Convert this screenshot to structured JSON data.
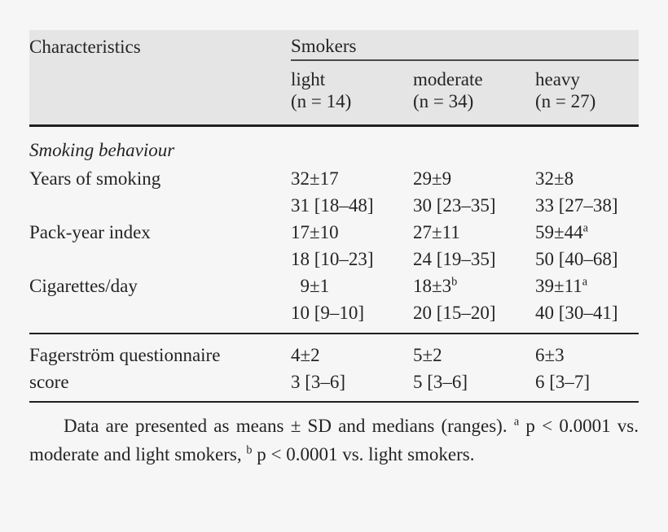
{
  "theme": {
    "page_bg": "#f6f6f6",
    "header_bg": "#e5e5e6",
    "text_color": "#242424",
    "rule_color": "#1f1f1f"
  },
  "table": {
    "corner_label": "Characteristics",
    "group_header": "Smokers",
    "columns": [
      {
        "label": "light",
        "n": "(n = 14)"
      },
      {
        "label": "moderate",
        "n": "(n = 34)"
      },
      {
        "label": "heavy",
        "n": "(n = 27)"
      }
    ],
    "section": "Smoking behaviour",
    "rows": [
      {
        "label": "Years of smoking",
        "cells": [
          {
            "mean": "32±17",
            "sup": "",
            "median": "31 [18–48]"
          },
          {
            "mean": "29±9",
            "sup": "",
            "median": "30 [23–35]"
          },
          {
            "mean": "32±8",
            "sup": "",
            "median": "33 [27–38]"
          }
        ]
      },
      {
        "label": "Pack-year index",
        "cells": [
          {
            "mean": "17±10",
            "sup": "",
            "median": "18 [10–23]"
          },
          {
            "mean": "27±11",
            "sup": "",
            "median": "24 [19–35]"
          },
          {
            "mean": "59±44",
            "sup": "a",
            "median": "50 [40–68]"
          }
        ]
      },
      {
        "label": "Cigarettes/day",
        "cells": [
          {
            "mean": "  9±1",
            "sup": "",
            "median": "10 [9–10]"
          },
          {
            "mean": "18±3",
            "sup": "b",
            "median": "20 [15–20]"
          },
          {
            "mean": "39±11",
            "sup": "a",
            "median": "40 [30–41]"
          }
        ]
      }
    ],
    "footer_row": {
      "label": "Fagerström questionnaire",
      "label2": "score",
      "cells": [
        {
          "mean": "4±2",
          "sup": "",
          "median": "3 [3–6]"
        },
        {
          "mean": "5±2",
          "sup": "",
          "median": "5 [3–6]"
        },
        {
          "mean": "6±3",
          "sup": "",
          "median": "6 [3–7]"
        }
      ]
    }
  },
  "footnote": {
    "part1": "Data are presented as means ± SD and medians (ranges). ",
    "sup1": "a",
    "part2": " p < 0.0001 vs. moderate and light smokers, ",
    "sup2": "b",
    "part3": " p < 0.0001 vs. light smokers."
  }
}
